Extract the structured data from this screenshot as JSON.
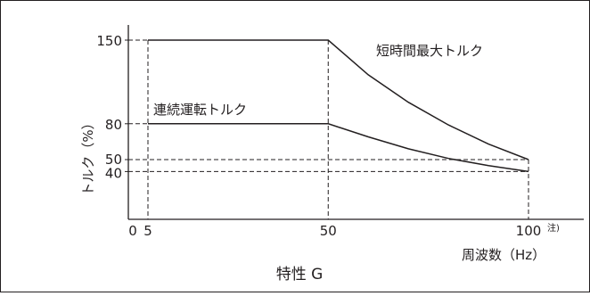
{
  "chart_data": {
    "type": "line",
    "ylabel": "トルク（%）",
    "xlabel": "周波数（Hz）",
    "x_note": "注)",
    "caption": "特性 G",
    "x_ticks": [
      "0",
      "5",
      "50",
      "100"
    ],
    "y_ticks": [
      "150",
      "80",
      "50",
      "40"
    ],
    "xlim": [
      0,
      100
    ],
    "ylim": [
      0,
      150
    ],
    "series": [
      {
        "name": "短時間最大トルク",
        "points": [
          [
            5,
            150
          ],
          [
            50,
            150
          ],
          [
            60,
            121
          ],
          [
            70,
            98
          ],
          [
            80,
            79
          ],
          [
            90,
            63
          ],
          [
            100,
            50
          ]
        ]
      },
      {
        "name": "連続運転トルク",
        "points": [
          [
            5,
            80
          ],
          [
            50,
            80
          ],
          [
            60,
            69
          ],
          [
            70,
            59
          ],
          [
            80,
            51
          ],
          [
            90,
            45
          ],
          [
            100,
            40
          ]
        ]
      }
    ],
    "reference_lines": {
      "vertical": [
        5,
        50,
        100
      ],
      "horizontal": [
        50,
        40
      ]
    }
  }
}
